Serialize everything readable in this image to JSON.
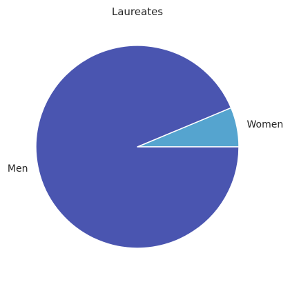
{
  "chart_data": {
    "type": "pie",
    "title": "Laureates",
    "slices": [
      {
        "label": "Women",
        "value": 6.3,
        "color": "#55a4cf"
      },
      {
        "label": "Men",
        "value": 93.7,
        "color": "#4a55b0"
      }
    ],
    "start_angle_deg": 0,
    "direction": "counterclockwise",
    "legend": "none"
  }
}
